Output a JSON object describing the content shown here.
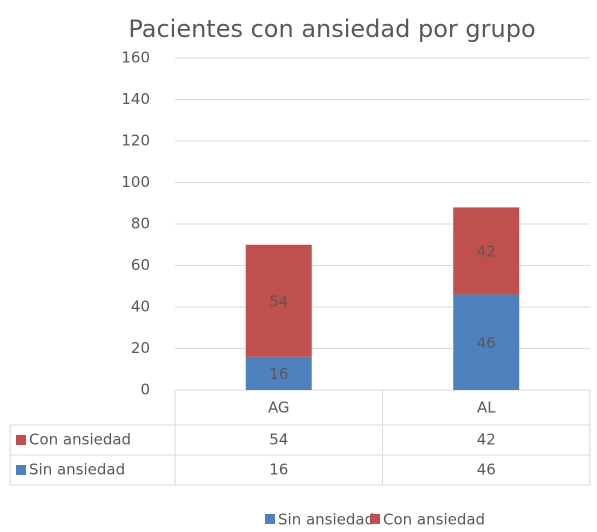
{
  "chart_data": {
    "type": "stacked_bar",
    "title": "Pacientes con ansiedad por grupo",
    "categories": [
      "AG",
      "AL"
    ],
    "series": [
      {
        "name": "Sin ansiedad",
        "color": "#4f81bd",
        "values": [
          16,
          46
        ]
      },
      {
        "name": "Con ansiedad",
        "color": "#c0504d",
        "values": [
          54,
          42
        ]
      }
    ],
    "ylim": [
      0,
      160
    ],
    "yticks": [
      0,
      20,
      40,
      60,
      80,
      100,
      120,
      140,
      160
    ],
    "grid": true,
    "legend": "bottom",
    "data_table": true
  }
}
